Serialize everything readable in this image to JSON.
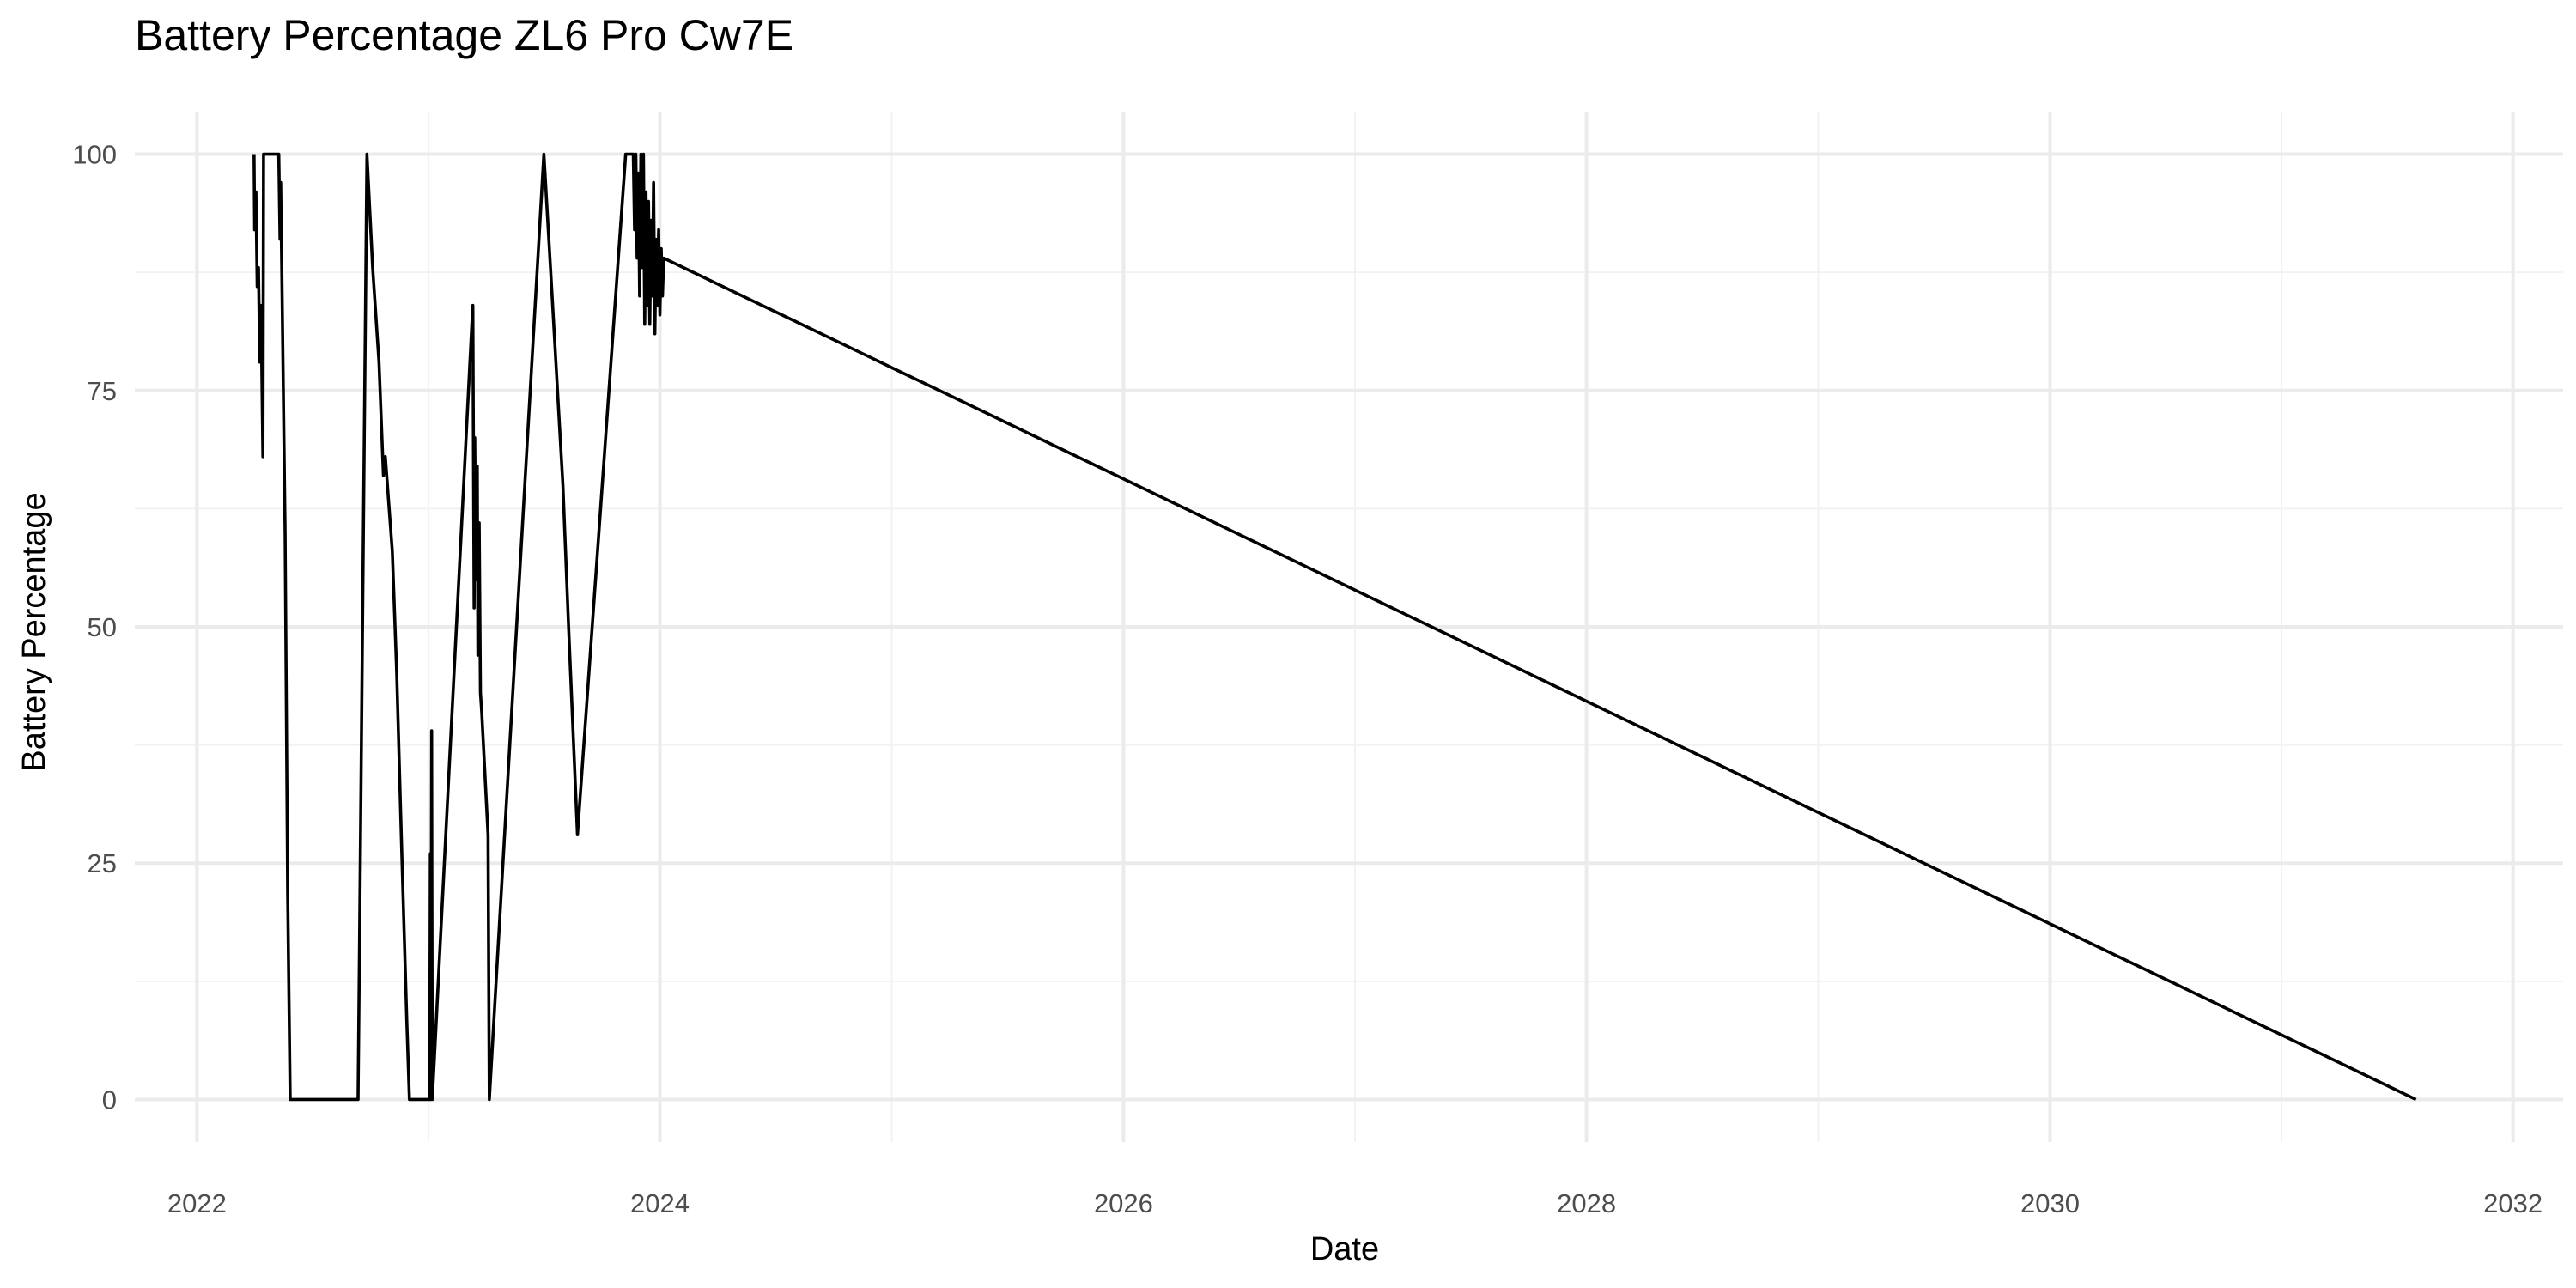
{
  "chart_data": {
    "type": "line",
    "title": "Battery Percentage ZL6 Pro Cw7E",
    "xlabel": "Date",
    "ylabel": "Battery Percentage",
    "x_type": "date",
    "xlim": [
      "2021-09-25",
      "2032-03-20"
    ],
    "ylim": [
      -4.5,
      104.5
    ],
    "x_ticks": [
      "2022-01-01",
      "2024-01-01",
      "2026-01-01",
      "2028-01-01",
      "2030-01-01",
      "2032-01-01"
    ],
    "x_tick_labels": [
      "2022",
      "2024",
      "2026",
      "2028",
      "2030",
      "2032"
    ],
    "y_ticks": [
      0,
      25,
      50,
      75,
      100
    ],
    "y_tick_labels": [
      "0",
      "25",
      "50",
      "75",
      "100"
    ],
    "grid": true,
    "legend": "none",
    "series": [
      {
        "color": "#000000",
        "points": [
          [
            "2022-04-01",
            100
          ],
          [
            "2022-04-02",
            92
          ],
          [
            "2022-04-04",
            96
          ],
          [
            "2022-04-06",
            86
          ],
          [
            "2022-04-08",
            88
          ],
          [
            "2022-04-10",
            78
          ],
          [
            "2022-04-12",
            84
          ],
          [
            "2022-04-15",
            68
          ],
          [
            "2022-04-16",
            100
          ],
          [
            "2022-05-10",
            100
          ],
          [
            "2022-05-12",
            91
          ],
          [
            "2022-05-13",
            97
          ],
          [
            "2022-05-20",
            60
          ],
          [
            "2022-05-24",
            22
          ],
          [
            "2022-05-28",
            0
          ],
          [
            "2022-09-12",
            0
          ],
          [
            "2022-09-26",
            100
          ],
          [
            "2022-10-05",
            88
          ],
          [
            "2022-10-15",
            78
          ],
          [
            "2022-10-22",
            66
          ],
          [
            "2022-10-25",
            68
          ],
          [
            "2022-11-05",
            58
          ],
          [
            "2022-11-12",
            45
          ],
          [
            "2022-11-20",
            26
          ],
          [
            "2022-11-28",
            8
          ],
          [
            "2022-12-02",
            0
          ],
          [
            "2023-01-03",
            0
          ],
          [
            "2023-01-04",
            26
          ],
          [
            "2023-01-05",
            0
          ],
          [
            "2023-01-06",
            39
          ],
          [
            "2023-01-07",
            0
          ],
          [
            "2023-03-12",
            84
          ],
          [
            "2023-03-14",
            52
          ],
          [
            "2023-03-15",
            70
          ],
          [
            "2023-03-17",
            55
          ],
          [
            "2023-03-19",
            67
          ],
          [
            "2023-03-20",
            47
          ],
          [
            "2023-03-22",
            61
          ],
          [
            "2023-03-24",
            43
          ],
          [
            "2023-03-26",
            41
          ],
          [
            "2023-04-05",
            28
          ],
          [
            "2023-04-07",
            0
          ],
          [
            "2023-07-02",
            100
          ],
          [
            "2023-07-15",
            85
          ],
          [
            "2023-08-01",
            65
          ],
          [
            "2023-08-10",
            50
          ],
          [
            "2023-08-24",
            28
          ],
          [
            "2023-11-08",
            100
          ],
          [
            "2023-11-20",
            100
          ],
          [
            "2023-11-22",
            92
          ],
          [
            "2023-11-24",
            100
          ],
          [
            "2023-11-26",
            89
          ],
          [
            "2023-11-28",
            98
          ],
          [
            "2023-11-30",
            85
          ],
          [
            "2023-12-02",
            100
          ],
          [
            "2023-12-04",
            88
          ],
          [
            "2023-12-06",
            100
          ],
          [
            "2023-12-08",
            82
          ],
          [
            "2023-12-10",
            96
          ],
          [
            "2023-12-12",
            84
          ],
          [
            "2023-12-14",
            95
          ],
          [
            "2023-12-16",
            82
          ],
          [
            "2023-12-18",
            93
          ],
          [
            "2023-12-20",
            85
          ],
          [
            "2023-12-22",
            97
          ],
          [
            "2023-12-24",
            81
          ],
          [
            "2023-12-26",
            91
          ],
          [
            "2023-12-28",
            84
          ],
          [
            "2023-12-30",
            92
          ],
          [
            "2024-01-01",
            83
          ],
          [
            "2024-01-03",
            90
          ],
          [
            "2024-01-05",
            85
          ],
          [
            "2024-01-07",
            89
          ],
          [
            "2031-08-01",
            0
          ]
        ]
      }
    ]
  }
}
